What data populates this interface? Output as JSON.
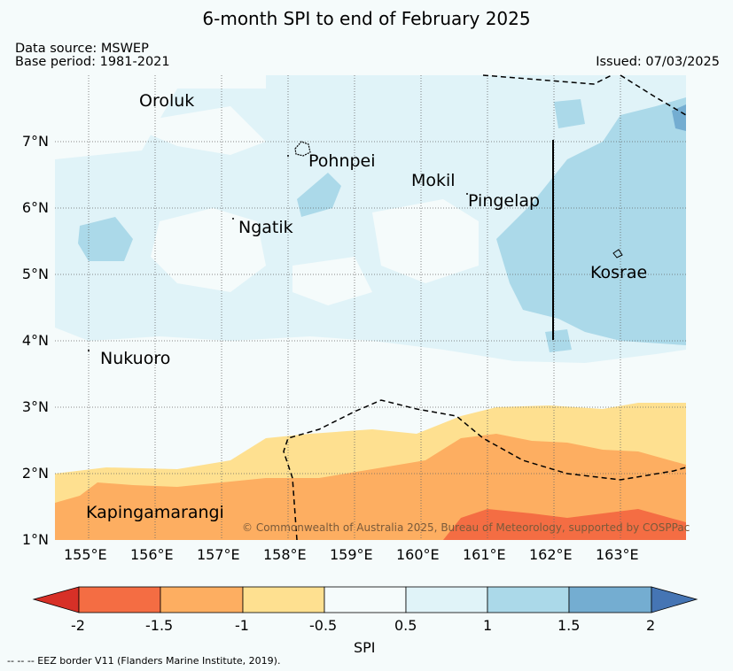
{
  "title": "6-month SPI to end of February 2025",
  "data_source": "Data source: MSWEP",
  "base_period": "Base period: 1981-2021",
  "issued": "Issued: 07/03/2025",
  "latitude_labels": [
    "7°N",
    "6°N",
    "5°N",
    "4°N",
    "3°N",
    "2°N",
    "1°N"
  ],
  "longitude_labels": [
    "155°E",
    "156°E",
    "157°E",
    "158°E",
    "159°E",
    "160°E",
    "161°E",
    "162°E",
    "163°E"
  ],
  "places": [
    "Oroluk",
    "Pohnpei",
    "Mokil",
    "Pingelap",
    "Ngatik",
    "Kosrae",
    "Nukuoro",
    "Kapingamarangi"
  ],
  "copyright": "© Commonwealth of Australia 2025, Bureau of Meteorology, supported by COSPPac",
  "colorbar": {
    "label": "SPI",
    "ticks": [
      "-2",
      "-1.5",
      "-1",
      "-0.5",
      "0.5",
      "1",
      "1.5",
      "2"
    ],
    "colors": [
      "#d73027",
      "#f46d43",
      "#fdae61",
      "#fee090",
      "#f5fbfb",
      "#e0f3f8",
      "#abd9e9",
      "#74add1",
      "#4575b4"
    ]
  },
  "footnote": "--  --  -- EEZ border V11 (Flanders Marine Institute, 2019)."
}
